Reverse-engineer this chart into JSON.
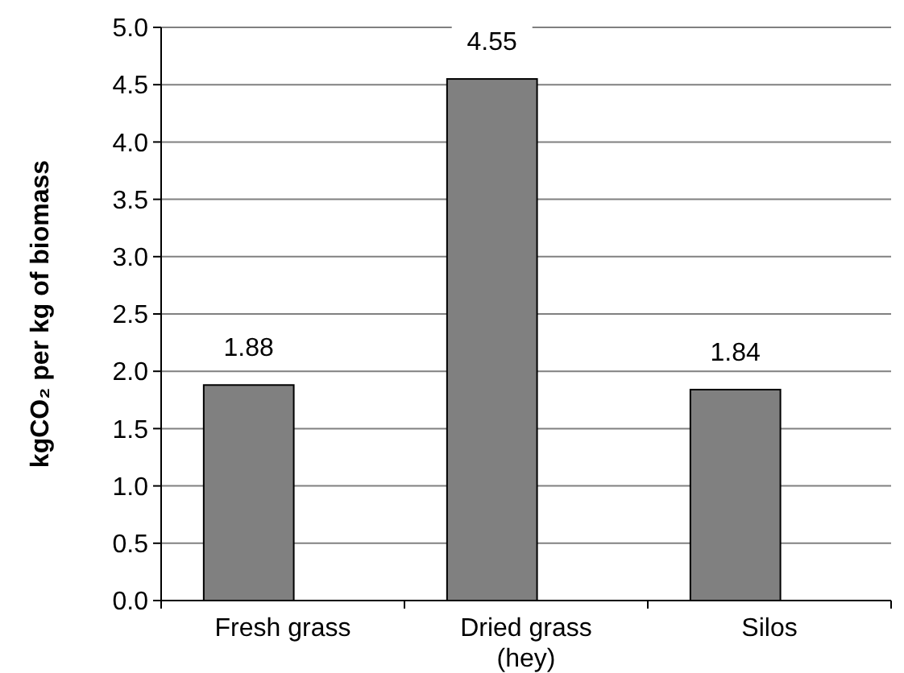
{
  "chart_data": {
    "type": "bar",
    "ylabel": "kgCO₂ per kg of biomass",
    "categories": [
      "Fresh grass",
      "Dried grass (hey)",
      "Silos"
    ],
    "values": [
      1.88,
      4.55,
      1.84
    ],
    "color": "#808080",
    "ylim": [
      0,
      5
    ],
    "yticks": [
      {
        "value": 0,
        "label": "0.0"
      },
      0.5,
      {
        "value": 1,
        "label": "1.0"
      },
      1.5,
      {
        "value": 2,
        "label": "2.0"
      },
      2.5,
      {
        "value": 3,
        "label": "3.0"
      },
      3.5,
      {
        "value": 4,
        "label": "4.0"
      },
      4.5,
      {
        "value": 5,
        "label": "5.0"
      }
    ],
    "grid": "y",
    "data_labels": true
  }
}
